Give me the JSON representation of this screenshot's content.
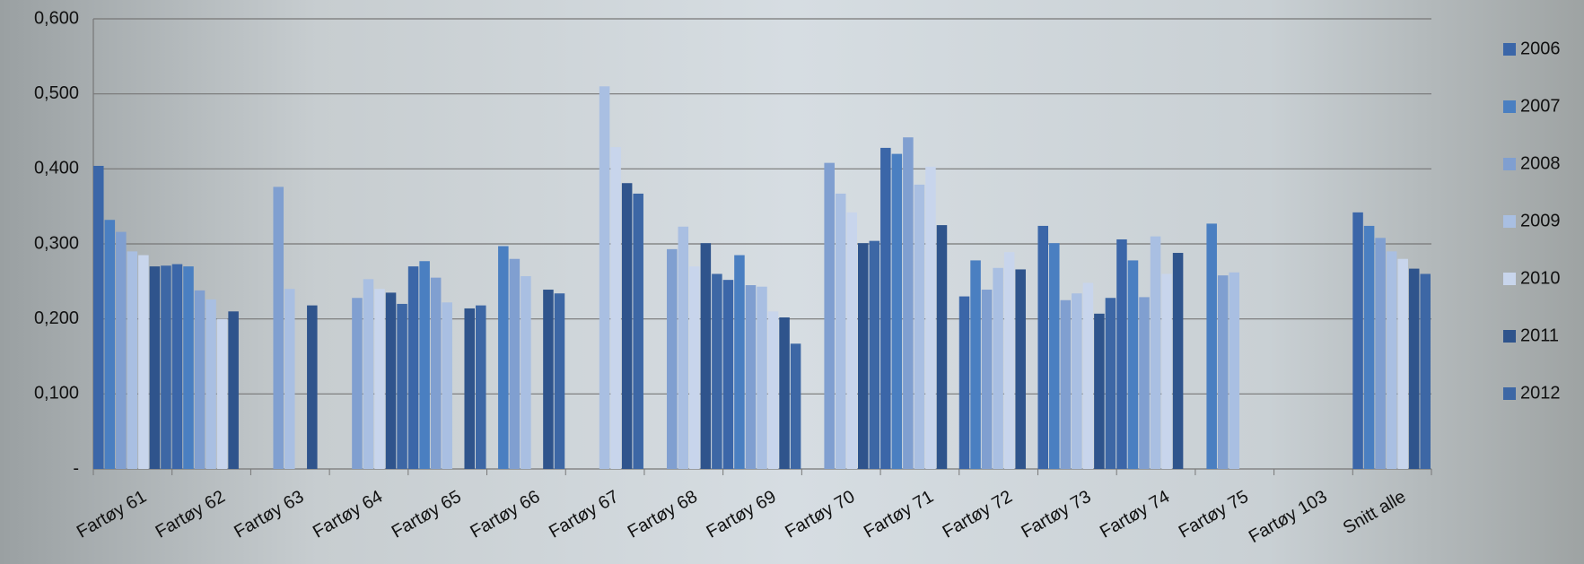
{
  "chart_data": {
    "type": "bar",
    "categories": [
      "Fartøy 61",
      "Fartøy 62",
      "Fartøy 63",
      "Fartøy 64",
      "Fartøy 65",
      "Fartøy 66",
      "Fartøy 67",
      "Fartøy 68",
      "Fartøy 69",
      "Fartøy 70",
      "Fartøy 71",
      "Fartøy 72",
      "Fartøy 73",
      "Fartøy 74",
      "Fartøy 75",
      "Fartøy 103",
      "Snitt alle"
    ],
    "series": [
      {
        "name": "2006",
        "color": "#3b66a8",
        "values": [
          0.404,
          0.273,
          null,
          null,
          0.27,
          null,
          null,
          null,
          0.252,
          null,
          0.428,
          0.23,
          0.324,
          0.306,
          null,
          null,
          0.342
        ]
      },
      {
        "name": "2007",
        "color": "#4a7fc1",
        "values": [
          0.332,
          0.27,
          null,
          null,
          0.277,
          0.297,
          null,
          null,
          0.285,
          null,
          0.42,
          0.278,
          0.301,
          0.278,
          0.327,
          null,
          0.324
        ]
      },
      {
        "name": "2008",
        "color": "#809fd0",
        "values": [
          0.316,
          0.238,
          0.376,
          0.228,
          0.255,
          0.28,
          null,
          0.293,
          0.245,
          0.408,
          0.442,
          0.239,
          0.225,
          0.229,
          0.258,
          null,
          0.308
        ]
      },
      {
        "name": "2009",
        "color": "#a9bfe2",
        "values": [
          0.29,
          0.226,
          0.24,
          0.253,
          0.222,
          0.257,
          0.51,
          0.323,
          0.243,
          0.367,
          0.379,
          0.268,
          0.234,
          0.31,
          0.262,
          null,
          0.29
        ]
      },
      {
        "name": "2010",
        "color": "#c8d5ec",
        "values": [
          0.285,
          0.2,
          null,
          0.24,
          null,
          null,
          0.429,
          0.27,
          0.21,
          0.342,
          0.403,
          0.289,
          0.248,
          0.26,
          null,
          null,
          0.28
        ]
      },
      {
        "name": "2011",
        "color": "#2f548c",
        "values": [
          0.27,
          0.21,
          0.218,
          0.235,
          0.214,
          0.239,
          0.381,
          0.301,
          0.202,
          0.301,
          0.325,
          0.266,
          0.207,
          0.288,
          null,
          null,
          0.267
        ]
      },
      {
        "name": "2012",
        "color": "#3d67a5",
        "values": [
          0.271,
          null,
          null,
          0.22,
          0.218,
          0.234,
          0.367,
          0.26,
          0.167,
          0.304,
          null,
          null,
          0.228,
          null,
          null,
          null,
          0.26
        ]
      }
    ],
    "ylim": [
      0,
      0.6
    ],
    "yticks": [
      {
        "value": 0,
        "label": "-"
      },
      {
        "value": 0.1,
        "label": "0,100"
      },
      {
        "value": 0.2,
        "label": "0,200"
      },
      {
        "value": 0.3,
        "label": "0,300"
      },
      {
        "value": 0.4,
        "label": "0,400"
      },
      {
        "value": 0.5,
        "label": "0,500"
      },
      {
        "value": 0.6,
        "label": "0,600"
      }
    ],
    "grid": true,
    "legend": "right"
  }
}
